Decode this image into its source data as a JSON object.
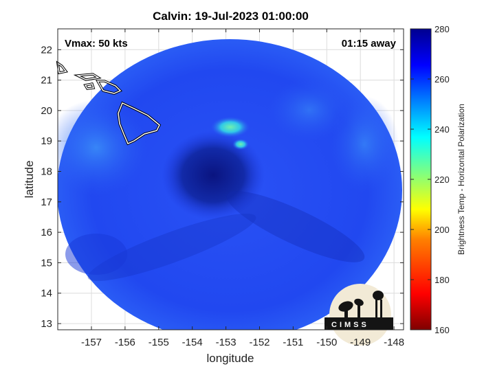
{
  "title": "Calvin: 19-Jul-2023 01:00:00",
  "vmax_label": "Vmax: 50 kts",
  "time_label": "01:15 away",
  "xlabel": "longitude",
  "ylabel": "latitude",
  "xticks": [
    "-157",
    "-156",
    "-155",
    "-154",
    "-153",
    "-152",
    "-151",
    "-150",
    "-149",
    "-148"
  ],
  "yticks": [
    "13",
    "14",
    "15",
    "16",
    "17",
    "18",
    "19",
    "20",
    "21",
    "22"
  ],
  "colorbar": {
    "label": "Brightness Temp - Horizontal Polarization",
    "ticks": [
      "160",
      "180",
      "200",
      "220",
      "240",
      "260",
      "280"
    ],
    "range": [
      160,
      280
    ],
    "colors": [
      "#7f0000",
      "#ff0000",
      "#ff8000",
      "#ffff00",
      "#80ff80",
      "#00ffff",
      "#0080ff",
      "#0000ff",
      "#00008f"
    ]
  },
  "logo_text": "CIMSS",
  "colors": {
    "background_blue": "#1e3cf0",
    "core_blue": "#0a1690",
    "cyan_feature": "#40e8c0"
  }
}
